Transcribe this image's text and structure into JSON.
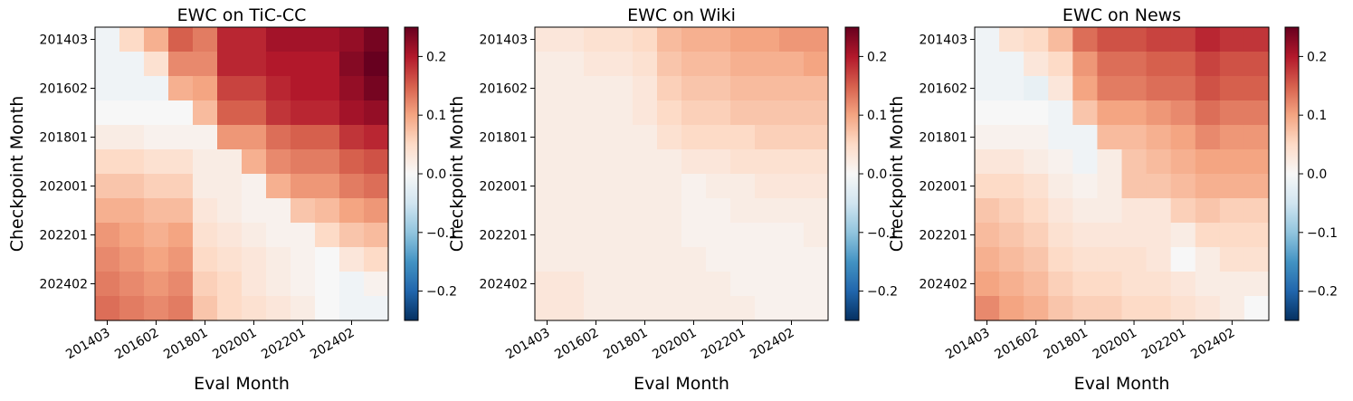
{
  "chart_data": [
    {
      "type": "heatmap",
      "title": "EWC on TiC-CC",
      "xlabel": "Eval Month",
      "ylabel": "Checkpoint Month",
      "x_ticks": [
        "201403",
        "201602",
        "201801",
        "202001",
        "202201",
        "202402"
      ],
      "y_ticks": [
        "201403",
        "201602",
        "201801",
        "202001",
        "202201",
        "202402"
      ],
      "colorbar_ticks": [
        "−0.2",
        "−0.1",
        "0.0",
        "0.1",
        "0.2"
      ],
      "colormap": "RdBu_r",
      "vmin": -0.25,
      "vmax": 0.25,
      "values": [
        [
          -0.01,
          0.05,
          0.09,
          0.15,
          0.13,
          0.19,
          0.19,
          0.21,
          0.21,
          0.21,
          0.22,
          0.24
        ],
        [
          -0.01,
          -0.01,
          0.04,
          0.12,
          0.12,
          0.19,
          0.19,
          0.2,
          0.2,
          0.2,
          0.23,
          0.25
        ],
        [
          -0.01,
          -0.01,
          -0.01,
          0.09,
          0.1,
          0.17,
          0.17,
          0.19,
          0.2,
          0.2,
          0.22,
          0.24
        ],
        [
          0.0,
          0.0,
          0.0,
          0.0,
          0.08,
          0.15,
          0.15,
          0.18,
          0.19,
          0.19,
          0.21,
          0.22
        ],
        [
          0.02,
          0.02,
          0.01,
          0.01,
          0.01,
          0.11,
          0.11,
          0.14,
          0.15,
          0.15,
          0.18,
          0.19
        ],
        [
          0.05,
          0.05,
          0.04,
          0.04,
          0.02,
          0.02,
          0.09,
          0.12,
          0.13,
          0.13,
          0.15,
          0.16
        ],
        [
          0.07,
          0.07,
          0.06,
          0.06,
          0.02,
          0.02,
          0.01,
          0.09,
          0.11,
          0.11,
          0.13,
          0.14
        ],
        [
          0.09,
          0.09,
          0.08,
          0.08,
          0.03,
          0.02,
          0.01,
          0.01,
          0.07,
          0.08,
          0.1,
          0.11
        ],
        [
          0.11,
          0.1,
          0.09,
          0.1,
          0.04,
          0.03,
          0.02,
          0.01,
          0.01,
          0.05,
          0.07,
          0.08
        ],
        [
          0.12,
          0.11,
          0.1,
          0.11,
          0.05,
          0.04,
          0.03,
          0.02,
          0.01,
          0.0,
          0.03,
          0.05
        ],
        [
          0.13,
          0.12,
          0.11,
          0.12,
          0.06,
          0.05,
          0.03,
          0.02,
          0.01,
          0.0,
          -0.01,
          0.01
        ],
        [
          0.14,
          0.13,
          0.12,
          0.13,
          0.07,
          0.05,
          0.04,
          0.03,
          0.02,
          0.0,
          -0.01,
          -0.01
        ]
      ]
    },
    {
      "type": "heatmap",
      "title": "EWC on Wiki",
      "xlabel": "Eval Month",
      "ylabel": "Checkpoint Month",
      "x_ticks": [
        "201403",
        "201602",
        "201801",
        "202001",
        "202201",
        "202402"
      ],
      "y_ticks": [
        "201403",
        "201602",
        "201801",
        "202001",
        "202201",
        "202402"
      ],
      "colorbar_ticks": [
        "−0.2",
        "−0.1",
        "0.0",
        "0.1",
        "0.2"
      ],
      "colormap": "RdBu_r",
      "vmin": -0.25,
      "vmax": 0.25,
      "values": [
        [
          0.03,
          0.03,
          0.04,
          0.04,
          0.05,
          0.08,
          0.09,
          0.09,
          0.1,
          0.1,
          0.11,
          0.11
        ],
        [
          0.02,
          0.02,
          0.03,
          0.03,
          0.04,
          0.07,
          0.08,
          0.08,
          0.09,
          0.09,
          0.09,
          0.1
        ],
        [
          0.02,
          0.02,
          0.02,
          0.02,
          0.03,
          0.06,
          0.07,
          0.07,
          0.08,
          0.08,
          0.08,
          0.08
        ],
        [
          0.02,
          0.02,
          0.02,
          0.02,
          0.03,
          0.05,
          0.06,
          0.06,
          0.07,
          0.07,
          0.07,
          0.07
        ],
        [
          0.02,
          0.02,
          0.02,
          0.02,
          0.02,
          0.04,
          0.05,
          0.05,
          0.05,
          0.06,
          0.06,
          0.06
        ],
        [
          0.02,
          0.02,
          0.02,
          0.02,
          0.02,
          0.02,
          0.03,
          0.03,
          0.04,
          0.04,
          0.04,
          0.04
        ],
        [
          0.02,
          0.02,
          0.02,
          0.02,
          0.02,
          0.02,
          0.01,
          0.02,
          0.02,
          0.03,
          0.03,
          0.03
        ],
        [
          0.02,
          0.02,
          0.02,
          0.02,
          0.02,
          0.02,
          0.01,
          0.01,
          0.02,
          0.02,
          0.02,
          0.02
        ],
        [
          0.02,
          0.02,
          0.02,
          0.02,
          0.02,
          0.02,
          0.01,
          0.01,
          0.01,
          0.01,
          0.01,
          0.02
        ],
        [
          0.02,
          0.02,
          0.02,
          0.02,
          0.02,
          0.02,
          0.02,
          0.01,
          0.01,
          0.01,
          0.01,
          0.01
        ],
        [
          0.03,
          0.03,
          0.02,
          0.02,
          0.02,
          0.02,
          0.02,
          0.02,
          0.01,
          0.01,
          0.01,
          0.01
        ],
        [
          0.03,
          0.03,
          0.02,
          0.02,
          0.02,
          0.02,
          0.02,
          0.02,
          0.02,
          0.01,
          0.01,
          0.01
        ]
      ]
    },
    {
      "type": "heatmap",
      "title": "EWC on News",
      "xlabel": "Eval Month",
      "ylabel": "Checkpoint Month",
      "x_ticks": [
        "201403",
        "201602",
        "201801",
        "202001",
        "202201",
        "202402"
      ],
      "y_ticks": [
        "201403",
        "201602",
        "201801",
        "202001",
        "202201",
        "202402"
      ],
      "colorbar_ticks": [
        "−0.2",
        "−0.1",
        "0.0",
        "0.1",
        "0.2"
      ],
      "colormap": "RdBu_r",
      "vmin": -0.25,
      "vmax": 0.25,
      "values": [
        [
          -0.01,
          0.04,
          0.05,
          0.08,
          0.14,
          0.16,
          0.16,
          0.17,
          0.17,
          0.19,
          0.18,
          0.18
        ],
        [
          -0.01,
          -0.01,
          0.03,
          0.05,
          0.11,
          0.14,
          0.14,
          0.15,
          0.15,
          0.17,
          0.16,
          0.16
        ],
        [
          -0.01,
          -0.01,
          -0.02,
          0.03,
          0.1,
          0.13,
          0.13,
          0.14,
          0.14,
          0.16,
          0.15,
          0.15
        ],
        [
          0.0,
          0.0,
          0.0,
          -0.01,
          0.07,
          0.1,
          0.1,
          0.11,
          0.12,
          0.14,
          0.13,
          0.13
        ],
        [
          0.01,
          0.01,
          0.01,
          -0.01,
          -0.01,
          0.08,
          0.08,
          0.09,
          0.1,
          0.12,
          0.11,
          0.11
        ],
        [
          0.03,
          0.03,
          0.02,
          0.01,
          -0.01,
          0.02,
          0.07,
          0.08,
          0.09,
          0.1,
          0.1,
          0.1
        ],
        [
          0.05,
          0.05,
          0.04,
          0.02,
          0.01,
          0.02,
          0.07,
          0.07,
          0.08,
          0.09,
          0.09,
          0.09
        ],
        [
          0.07,
          0.06,
          0.05,
          0.03,
          0.02,
          0.02,
          0.03,
          0.03,
          0.06,
          0.07,
          0.06,
          0.06
        ],
        [
          0.08,
          0.07,
          0.06,
          0.04,
          0.03,
          0.03,
          0.03,
          0.03,
          0.02,
          0.05,
          0.05,
          0.05
        ],
        [
          0.09,
          0.08,
          0.07,
          0.05,
          0.04,
          0.04,
          0.04,
          0.03,
          0.0,
          0.02,
          0.04,
          0.04
        ],
        [
          0.1,
          0.09,
          0.08,
          0.06,
          0.05,
          0.05,
          0.04,
          0.04,
          0.03,
          0.02,
          0.02,
          0.02
        ],
        [
          0.12,
          0.1,
          0.09,
          0.07,
          0.06,
          0.06,
          0.05,
          0.05,
          0.04,
          0.03,
          0.02,
          0.0
        ]
      ]
    }
  ]
}
